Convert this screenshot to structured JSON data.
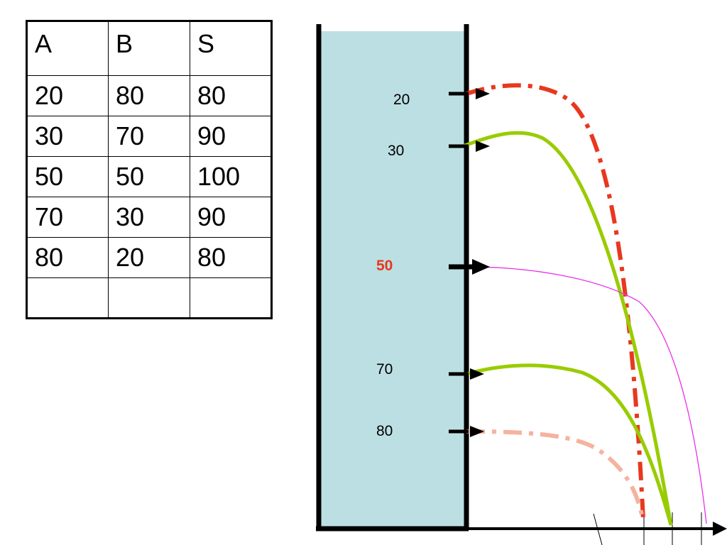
{
  "table": {
    "headers": [
      "A",
      "B",
      "S"
    ],
    "rows": [
      [
        "20",
        "80",
        "80"
      ],
      [
        "30",
        "70",
        "90"
      ],
      [
        "50",
        "50",
        "100"
      ],
      [
        "70",
        "30",
        "90"
      ],
      [
        "80",
        "20",
        "80"
      ],
      [
        "",
        "",
        ""
      ]
    ]
  },
  "diagram": {
    "water_color": "#bcdfe3",
    "openings": [
      {
        "label": "20",
        "highlight": false,
        "color": "#e8381e",
        "style": "dash-dot"
      },
      {
        "label": "30",
        "highlight": false,
        "color": "#99cc00",
        "style": "solid"
      },
      {
        "label": "50",
        "highlight": true,
        "color": "#e832e8",
        "style": "thin"
      },
      {
        "label": "70",
        "highlight": false,
        "color": "#99cc00",
        "style": "solid"
      },
      {
        "label": "80",
        "highlight": false,
        "color": "#f5b39f",
        "style": "dash-dot"
      }
    ]
  }
}
